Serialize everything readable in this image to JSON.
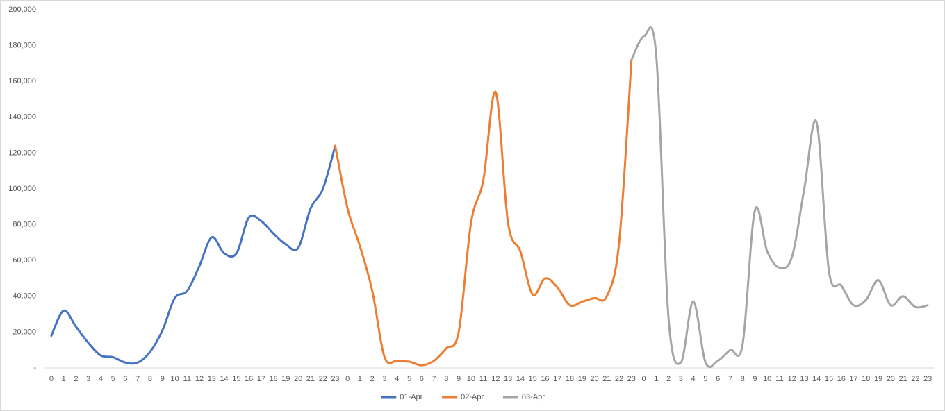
{
  "chart_data": {
    "type": "line",
    "categories": [
      "0",
      "1",
      "2",
      "3",
      "4",
      "5",
      "6",
      "7",
      "8",
      "9",
      "10",
      "11",
      "12",
      "13",
      "14",
      "15",
      "16",
      "17",
      "18",
      "19",
      "20",
      "21",
      "22",
      "23",
      "0",
      "1",
      "2",
      "3",
      "4",
      "5",
      "6",
      "7",
      "8",
      "9",
      "10",
      "11",
      "12",
      "13",
      "14",
      "15",
      "16",
      "17",
      "18",
      "19",
      "20",
      "21",
      "22",
      "23",
      "0",
      "1",
      "2",
      "3",
      "4",
      "5",
      "6",
      "7",
      "8",
      "9",
      "10",
      "11",
      "12",
      "13",
      "14",
      "15",
      "16",
      "17",
      "18",
      "19",
      "20",
      "21",
      "22",
      "23"
    ],
    "series": [
      {
        "name": "01-Apr",
        "color": "#4472c4",
        "values": [
          18000,
          32000,
          23000,
          14000,
          7000,
          6000,
          3000,
          3000,
          9000,
          21000,
          39000,
          43000,
          57000,
          73000,
          64000,
          64000,
          84000,
          82000,
          75000,
          69000,
          67000,
          89000,
          100000,
          124000,
          null,
          null,
          null,
          null,
          null,
          null,
          null,
          null,
          null,
          null,
          null,
          null,
          null,
          null,
          null,
          null,
          null,
          null,
          null,
          null,
          null,
          null,
          null,
          null,
          null,
          null,
          null,
          null,
          null,
          null,
          null,
          null,
          null,
          null,
          null,
          null,
          null,
          null,
          null,
          null,
          null,
          null,
          null,
          null,
          null,
          null,
          null,
          null
        ]
      },
      {
        "name": "02-Apr",
        "color": "#ed7d31",
        "values": [
          null,
          null,
          null,
          null,
          null,
          null,
          null,
          null,
          null,
          null,
          null,
          null,
          null,
          null,
          null,
          null,
          null,
          null,
          null,
          null,
          null,
          null,
          null,
          124000,
          89000,
          68000,
          43000,
          6000,
          4000,
          3500,
          1500,
          4000,
          11000,
          20000,
          81000,
          105000,
          154000,
          81000,
          65000,
          41000,
          50000,
          45000,
          35000,
          37000,
          39000,
          40000,
          70000,
          172000,
          null,
          null,
          null,
          null,
          null,
          null,
          null,
          null,
          null,
          null,
          null,
          null,
          null,
          null,
          null,
          null,
          null,
          null,
          null,
          null,
          null,
          null,
          null,
          null
        ]
      },
      {
        "name": "03-Apr",
        "color": "#a5a5a5",
        "values": [
          null,
          null,
          null,
          null,
          null,
          null,
          null,
          null,
          null,
          null,
          null,
          null,
          null,
          null,
          null,
          null,
          null,
          null,
          null,
          null,
          null,
          null,
          null,
          null,
          null,
          null,
          null,
          null,
          null,
          null,
          null,
          null,
          null,
          null,
          null,
          null,
          null,
          null,
          null,
          null,
          null,
          null,
          null,
          null,
          null,
          null,
          null,
          172000,
          185000,
          175000,
          28000,
          3000,
          37000,
          3000,
          4000,
          10000,
          13000,
          88000,
          65000,
          56000,
          62000,
          100000,
          137000,
          54000,
          46000,
          35000,
          38000,
          49000,
          35000,
          40000,
          34000,
          35000
        ]
      }
    ],
    "ylim": [
      0,
      200000
    ],
    "yticks": [
      {
        "value": 0,
        "label": "-"
      },
      {
        "value": 20000,
        "label": "20,000"
      },
      {
        "value": 40000,
        "label": "40,000"
      },
      {
        "value": 60000,
        "label": "60,000"
      },
      {
        "value": 80000,
        "label": "80,000"
      },
      {
        "value": 100000,
        "label": "100,000"
      },
      {
        "value": 120000,
        "label": "120,000"
      },
      {
        "value": 140000,
        "label": "140,000"
      },
      {
        "value": 160000,
        "label": "160,000"
      },
      {
        "value": 180000,
        "label": "180,000"
      },
      {
        "value": 200000,
        "label": "200,000"
      }
    ],
    "legend": "bottom"
  }
}
